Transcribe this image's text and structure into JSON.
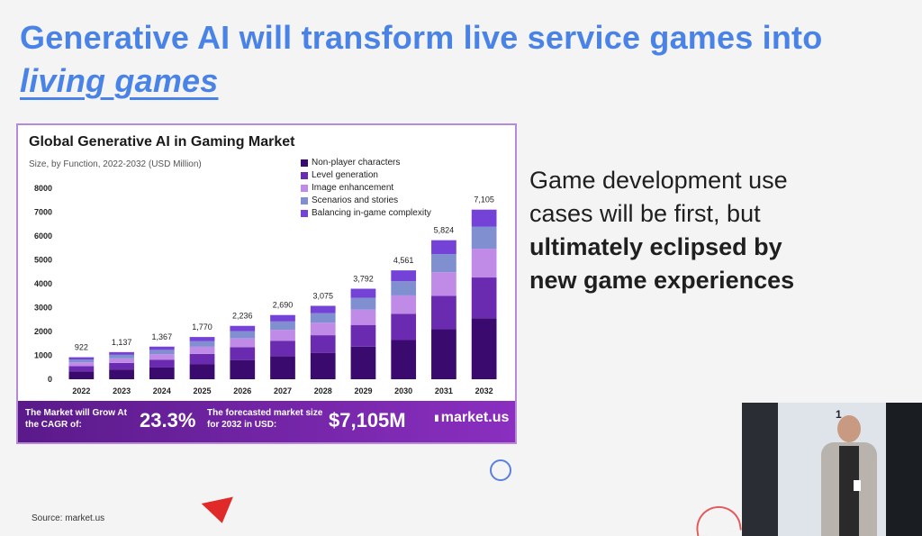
{
  "headline": {
    "line1": "Generative AI will transform live service games into",
    "line2": "living games"
  },
  "chart_data": {
    "type": "bar",
    "stacked": true,
    "title": "Global Generative AI in Gaming Market",
    "subtitle": "Size, by Function, 2022-2032 (USD Million)",
    "categories": [
      "2022",
      "2023",
      "2024",
      "2025",
      "2026",
      "2027",
      "2028",
      "2029",
      "2030",
      "2031",
      "2032"
    ],
    "totals": [
      922,
      1137,
      1367,
      1770,
      2236,
      2690,
      3075,
      3792,
      4561,
      5824,
      7105
    ],
    "total_labels": [
      "922",
      "1,137",
      "1,367",
      "1,770",
      "2,236",
      "2,690",
      "3,075",
      "3,792",
      "4,561",
      "5,824",
      "7,105"
    ],
    "series": [
      {
        "name": "Non-player characters",
        "color": "#3b0a6e",
        "share": 0.36
      },
      {
        "name": "Level generation",
        "color": "#6a2bb0",
        "share": 0.24
      },
      {
        "name": "Image enhancement",
        "color": "#c08be6",
        "share": 0.17
      },
      {
        "name": "Scenarios and stories",
        "color": "#7f8fd0",
        "share": 0.13
      },
      {
        "name": "Balancing in-game complexity",
        "color": "#7442d6",
        "share": 0.1
      }
    ],
    "yticks": [
      "0",
      "1000",
      "2000",
      "3000",
      "4000",
      "5000",
      "6000",
      "7000",
      "8000"
    ],
    "ylim": [
      0,
      8000
    ],
    "legend": "top-right",
    "grid": false
  },
  "banner": {
    "text1": "The Market will Grow At the CAGR of:",
    "value1": "23.3%",
    "text2": "The forecasted market size for 2032 in USD:",
    "value2": "$7,105M",
    "logo": "market.us"
  },
  "side_text": {
    "part1": "Game development use cases will be first, but ",
    "bold": "ultimately eclipsed by new game experiences"
  },
  "source": "Source: market.us",
  "video": {
    "label": "1"
  }
}
